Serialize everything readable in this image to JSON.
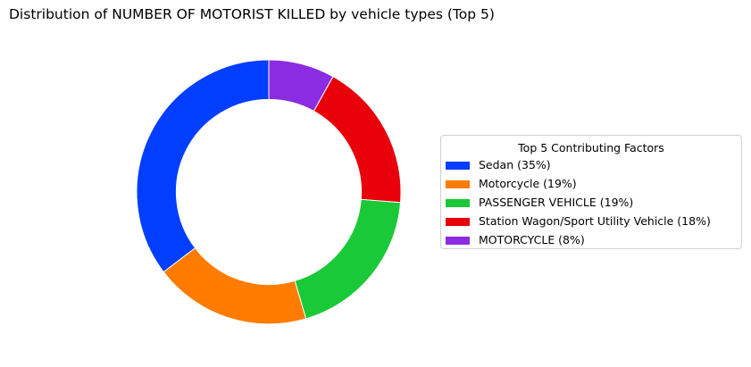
{
  "chart_data": {
    "type": "pie",
    "subtype": "donut",
    "title": "Distribution of NUMBER OF MOTORIST KILLED by vehicle types (Top 5)",
    "legend_title": "Top 5 Contributing Factors",
    "legend_position": "right",
    "categories": [
      "Sedan",
      "Motorcycle",
      "PASSENGER VEHICLE",
      "Station Wagon/Sport Utility Vehicle",
      "MOTORCYCLE"
    ],
    "values": [
      35,
      19,
      19,
      18,
      8
    ],
    "legend_labels": [
      "Sedan (35%)",
      "Motorcycle (19%)",
      "PASSENGER VEHICLE (19%)",
      "Station Wagon/Sport Utility Vehicle (18%)",
      "MOTORCYCLE (8%)"
    ],
    "colors": [
      "#023eff",
      "#ff7c00",
      "#1ac938",
      "#e8000b",
      "#8b2be2"
    ]
  }
}
